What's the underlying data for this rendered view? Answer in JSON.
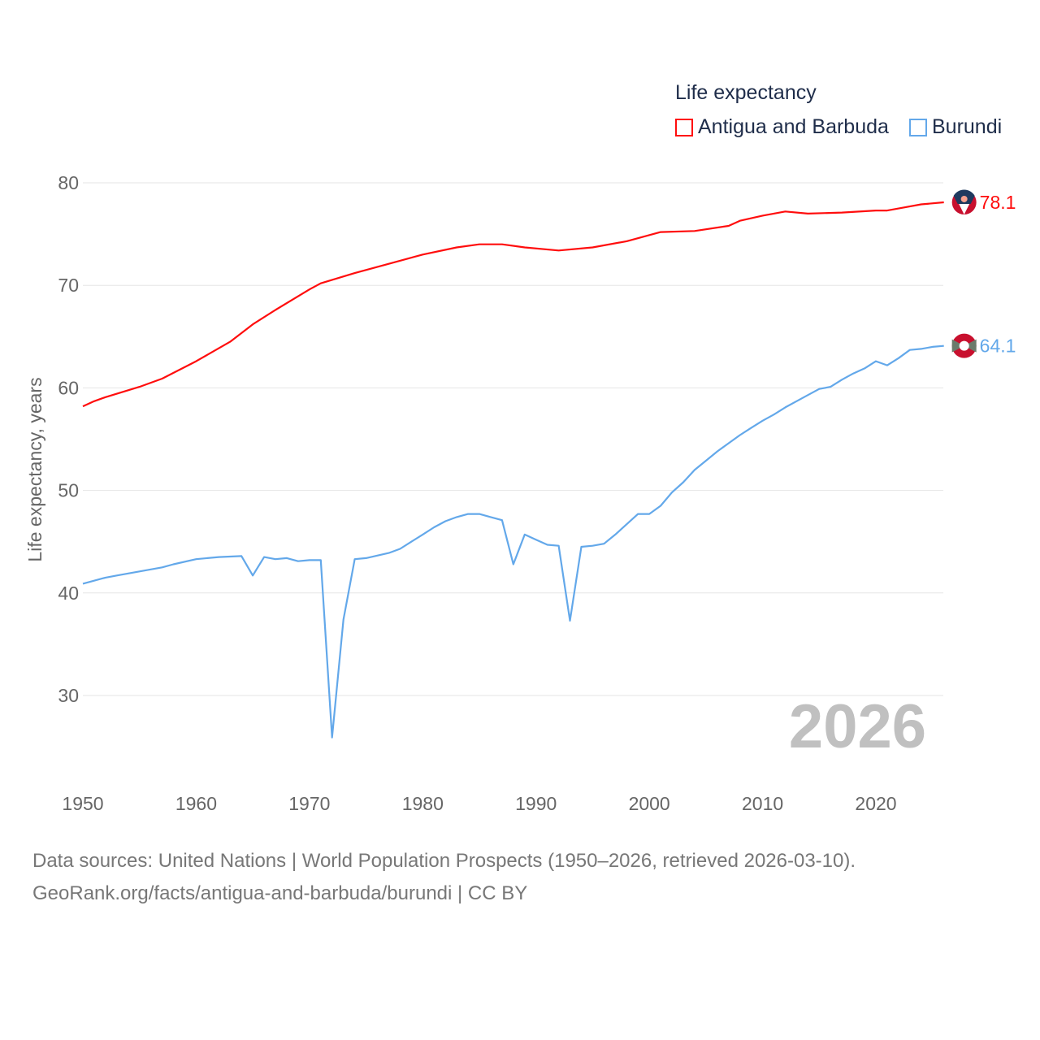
{
  "legend": {
    "title": "Life expectancy",
    "items": [
      {
        "label": "Antigua and Barbuda",
        "color": "#ff0d0d"
      },
      {
        "label": "Burundi",
        "color": "#63a8ea"
      }
    ]
  },
  "footer": {
    "line1": "Data sources: United Nations | World Population Prospects (1950–2026, retrieved 2026-03-10).",
    "line2": "GeoRank.org/facts/antigua-and-barbuda/burundi | CC BY"
  },
  "chart_data": {
    "type": "line",
    "title": "Life expectancy",
    "xlabel": "",
    "ylabel": "Life expectancy, years",
    "xlim": [
      1950,
      2026
    ],
    "ylim": [
      23,
      82
    ],
    "xticks": [
      1950,
      1960,
      1970,
      1980,
      1990,
      2000,
      2010,
      2020
    ],
    "yticks": [
      30,
      40,
      50,
      60,
      70,
      80
    ],
    "grid": true,
    "legend_position": "top-right",
    "watermark_year": "2026",
    "series": [
      {
        "name": "Antigua and Barbuda",
        "color": "#ff0d0d",
        "end_label": "78.1",
        "flag": "antigua-and-barbuda",
        "x": [
          1950,
          1951,
          1952,
          1955,
          1957,
          1960,
          1963,
          1965,
          1967,
          1970,
          1971,
          1974,
          1977,
          1980,
          1983,
          1985,
          1987,
          1989,
          1992,
          1995,
          1998,
          2001,
          2004,
          2007,
          2008,
          2010,
          2012,
          2014,
          2017,
          2020,
          2021,
          2022,
          2024,
          2026
        ],
        "y": [
          58.2,
          58.7,
          59.1,
          60.1,
          60.9,
          62.6,
          64.5,
          66.2,
          67.6,
          69.6,
          70.2,
          71.2,
          72.1,
          73.0,
          73.7,
          74.0,
          74.0,
          73.7,
          73.4,
          73.7,
          74.3,
          75.2,
          75.3,
          75.8,
          76.3,
          76.8,
          77.2,
          77.0,
          77.1,
          77.3,
          77.3,
          77.5,
          77.9,
          78.1
        ]
      },
      {
        "name": "Burundi",
        "color": "#63a8ea",
        "end_label": "64.1",
        "flag": "burundi",
        "x": [
          1950,
          1952,
          1953,
          1955,
          1957,
          1958,
          1960,
          1962,
          1964,
          1965,
          1966,
          1967,
          1968,
          1969,
          1970,
          1971,
          1972,
          1973,
          1974,
          1975,
          1977,
          1978,
          1979,
          1980,
          1981,
          1982,
          1983,
          1984,
          1985,
          1986,
          1987,
          1988,
          1989,
          1990,
          1991,
          1992,
          1993,
          1994,
          1995,
          1996,
          1997,
          1998,
          1999,
          2000,
          2001,
          2002,
          2003,
          2004,
          2005,
          2006,
          2007,
          2008,
          2009,
          2010,
          2011,
          2012,
          2013,
          2014,
          2015,
          2016,
          2017,
          2018,
          2019,
          2020,
          2021,
          2022,
          2023,
          2024,
          2025,
          2026
        ],
        "y": [
          40.9,
          41.5,
          41.7,
          42.1,
          42.5,
          42.8,
          43.3,
          43.5,
          43.6,
          41.7,
          43.5,
          43.3,
          43.4,
          43.1,
          43.2,
          43.2,
          25.9,
          37.4,
          43.3,
          43.4,
          43.9,
          44.3,
          45.0,
          45.7,
          46.4,
          47.0,
          47.4,
          47.7,
          47.7,
          47.4,
          47.1,
          42.8,
          45.7,
          45.2,
          44.7,
          44.6,
          37.3,
          44.5,
          44.6,
          44.8,
          45.7,
          46.7,
          47.7,
          47.7,
          48.5,
          49.8,
          50.8,
          52.0,
          52.9,
          53.8,
          54.6,
          55.4,
          56.1,
          56.8,
          57.4,
          58.1,
          58.7,
          59.3,
          59.9,
          60.1,
          60.8,
          61.4,
          61.9,
          62.6,
          62.2,
          62.9,
          63.7,
          63.8,
          64.0,
          64.1
        ]
      }
    ]
  }
}
